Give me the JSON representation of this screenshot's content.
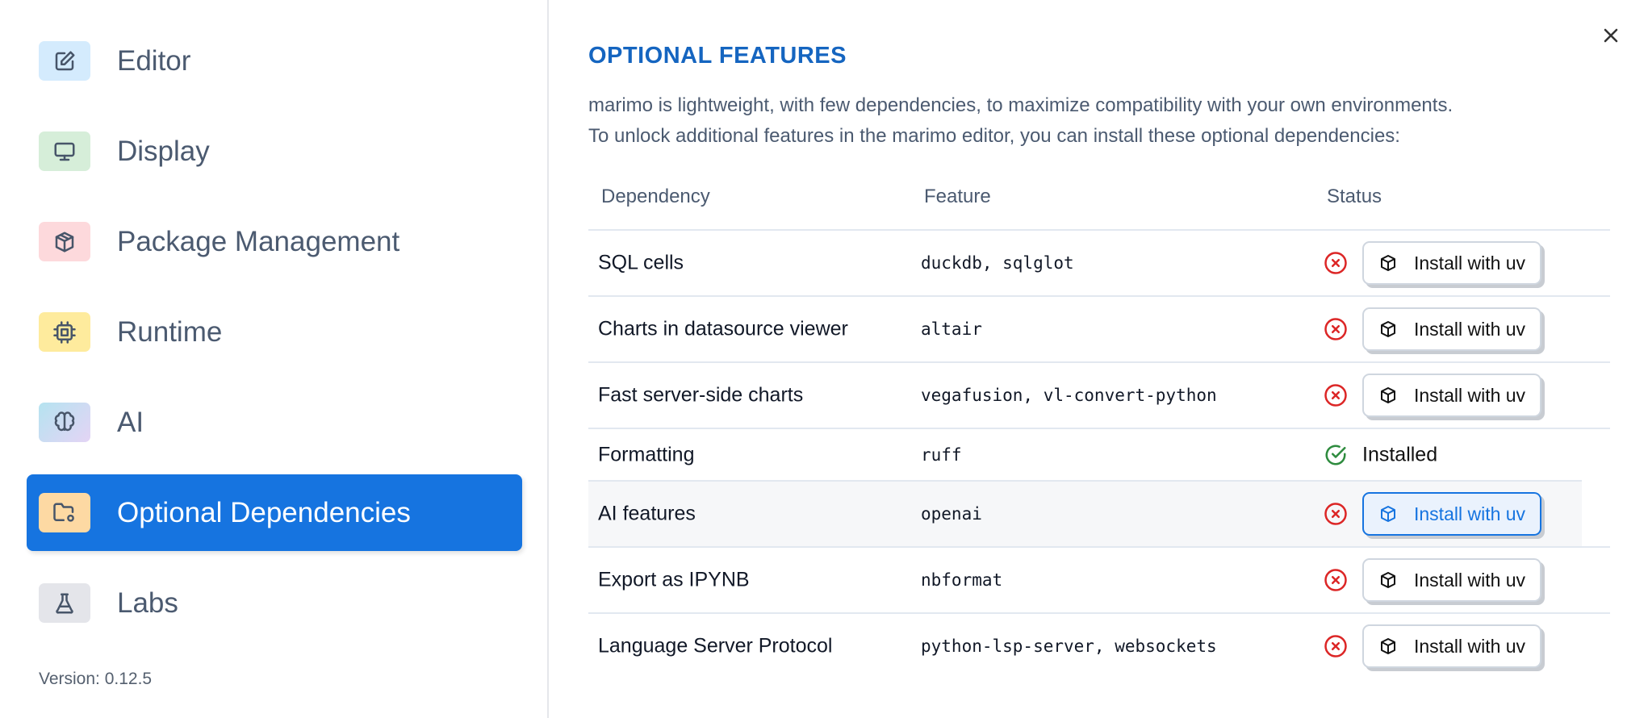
{
  "sidebar": {
    "items": [
      {
        "label": "Editor",
        "icon": "pencil-square-icon",
        "color": "#d4ebfd"
      },
      {
        "label": "Display",
        "icon": "monitor-icon",
        "color": "#d6eed9"
      },
      {
        "label": "Package Management",
        "icon": "package-icon",
        "color": "#fdd9dc"
      },
      {
        "label": "Runtime",
        "icon": "cpu-icon",
        "color": "#feeb9d"
      },
      {
        "label": "AI",
        "icon": "brain-icon",
        "color": "#d4dcf2"
      },
      {
        "label": "Optional Dependencies",
        "icon": "folder-cog-icon",
        "color": "#fdd9a3",
        "active": true
      },
      {
        "label": "Labs",
        "icon": "flask-icon",
        "color": "#e4e5ea"
      }
    ],
    "version": "Version: 0.12.5"
  },
  "main": {
    "title": "OPTIONAL FEATURES",
    "description_1": "marimo is lightweight, with few dependencies, to maximize compatibility with your own environments.",
    "description_2": "To unlock additional features in the marimo editor, you can install these optional dependencies:",
    "table": {
      "headers": [
        "Dependency",
        "Feature",
        "Status"
      ],
      "rows": [
        {
          "dependency": "SQL cells",
          "feature": "duckdb, sqlglot",
          "status": "missing",
          "action": "Install with uv"
        },
        {
          "dependency": "Charts in datasource viewer",
          "feature": "altair",
          "status": "missing",
          "action": "Install with uv"
        },
        {
          "dependency": "Fast server-side charts",
          "feature": "vegafusion, vl-convert-python",
          "status": "missing",
          "action": "Install with uv"
        },
        {
          "dependency": "Formatting",
          "feature": "ruff",
          "status": "installed",
          "action": "Installed"
        },
        {
          "dependency": "AI features",
          "feature": "openai",
          "status": "missing",
          "action": "Install with uv"
        },
        {
          "dependency": "Export as IPYNB",
          "feature": "nbformat",
          "status": "missing",
          "action": "Install with uv"
        },
        {
          "dependency": "Language Server Protocol",
          "feature": "python-lsp-server, websockets",
          "status": "missing",
          "action": "Install with uv"
        }
      ]
    }
  },
  "colors": {
    "accent": "#1674e0",
    "title": "#1565c0",
    "error": "#dc2626",
    "success": "#2e8b3e"
  }
}
